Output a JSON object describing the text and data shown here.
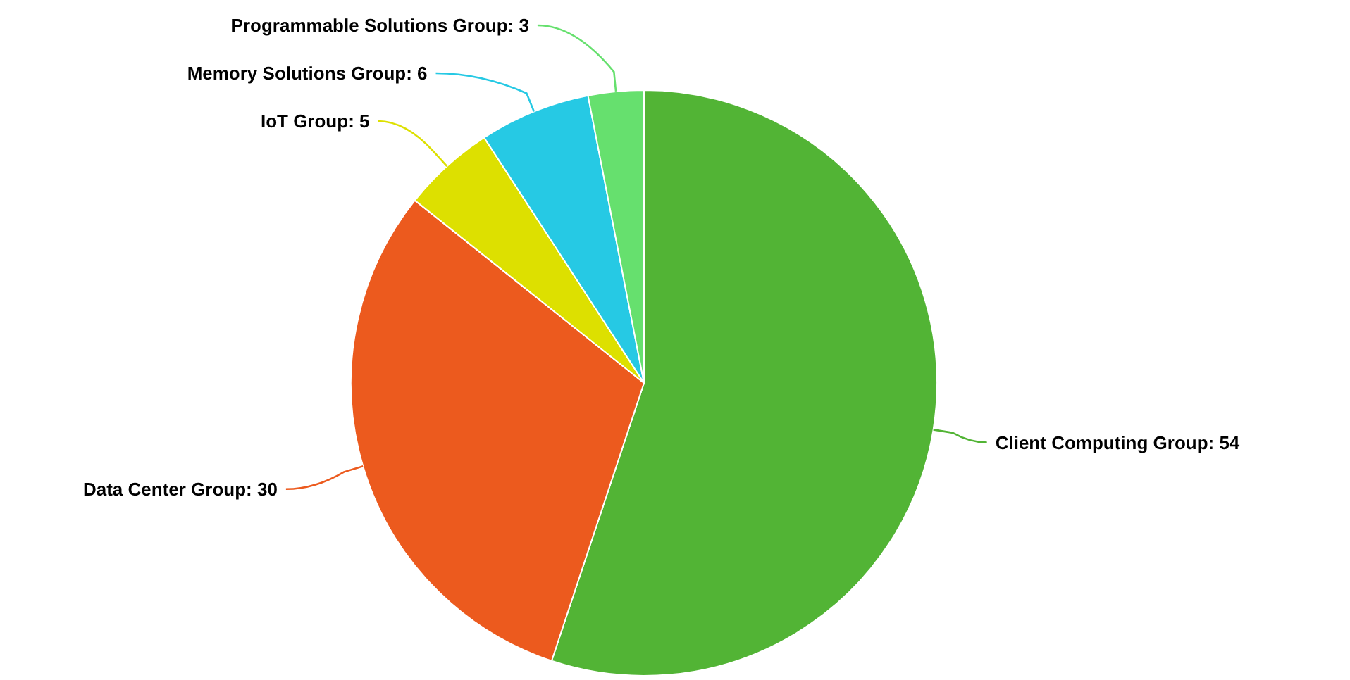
{
  "chart_data": {
    "type": "pie",
    "categories": [
      "Client Computing Group",
      "Data Center Group",
      "IoT Group",
      "Memory Solutions Group",
      "Programmable Solutions Group"
    ],
    "values": [
      54,
      30,
      5,
      6,
      3
    ],
    "colors": [
      "#52b435",
      "#ec5a1e",
      "#dde000",
      "#26c9e4",
      "#66e06e"
    ],
    "value_labels": [
      ": 54",
      ": 30",
      ": 5",
      ": 6",
      ": 3"
    ]
  }
}
